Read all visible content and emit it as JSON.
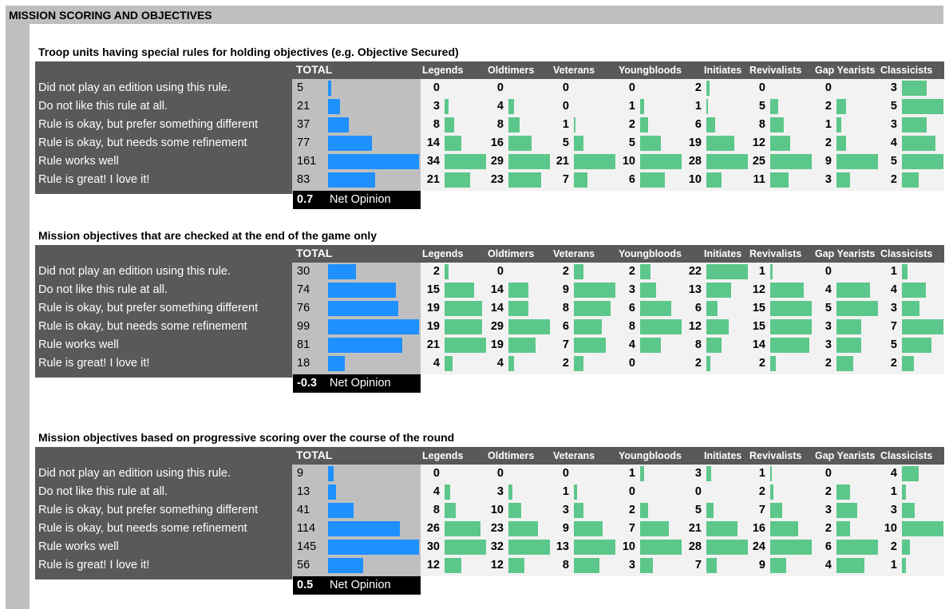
{
  "header": {
    "title": "MISSION SCORING AND OBJECTIVES"
  },
  "total_label": "TOTAL",
  "net_label": "Net Opinion",
  "groups": [
    "Legends",
    "Oldtimers",
    "Veterans",
    "Youngbloods",
    "Initiates",
    "Revivalists",
    "Gap Yearists",
    "Classicists"
  ],
  "row_labels": [
    "Did not play an edition using this rule.",
    "Do not like this rule at all.",
    "Rule is okay, but prefer something different",
    "Rule is okay, but needs some refinement",
    "Rule works well",
    "Rule is great! I love it!"
  ],
  "colors": {
    "total_bar": "#1e90ff",
    "group_bar": "#5cc78a",
    "dark": "#595959",
    "grey": "#bfbfbf",
    "light": "#f2f2f2"
  },
  "chart_data": [
    {
      "type": "table",
      "title": "Troop units having special rules for holding objectives (e.g. Objective Secured)",
      "net_opinion": "0.7",
      "totals": [
        5,
        21,
        37,
        77,
        161,
        83
      ],
      "group_values": [
        [
          0,
          3,
          8,
          14,
          34,
          21
        ],
        [
          0,
          4,
          8,
          16,
          29,
          23
        ],
        [
          0,
          0,
          1,
          5,
          21,
          7
        ],
        [
          0,
          1,
          2,
          5,
          10,
          6
        ],
        [
          2,
          1,
          6,
          19,
          28,
          10
        ],
        [
          0,
          5,
          8,
          12,
          25,
          11
        ],
        [
          0,
          2,
          1,
          2,
          9,
          3
        ],
        [
          3,
          5,
          3,
          4,
          5,
          2
        ]
      ]
    },
    {
      "type": "table",
      "title": "Mission objectives that are checked at the end of the game only",
      "net_opinion": "-0.3",
      "totals": [
        30,
        74,
        76,
        99,
        81,
        18
      ],
      "group_values": [
        [
          2,
          15,
          19,
          19,
          21,
          4
        ],
        [
          0,
          14,
          14,
          29,
          19,
          4
        ],
        [
          2,
          9,
          8,
          6,
          7,
          2
        ],
        [
          2,
          3,
          6,
          8,
          4,
          0
        ],
        [
          22,
          13,
          6,
          12,
          8,
          2
        ],
        [
          1,
          12,
          15,
          15,
          14,
          2
        ],
        [
          0,
          4,
          5,
          3,
          3,
          2
        ],
        [
          1,
          4,
          3,
          7,
          5,
          2
        ]
      ]
    },
    {
      "type": "table",
      "title": "Mission objectives based on progressive scoring over the course of the round",
      "net_opinion": "0.5",
      "totals": [
        9,
        13,
        41,
        114,
        145,
        56
      ],
      "group_values": [
        [
          0,
          4,
          8,
          26,
          30,
          12
        ],
        [
          0,
          3,
          10,
          23,
          32,
          12
        ],
        [
          0,
          1,
          3,
          9,
          13,
          8
        ],
        [
          1,
          0,
          2,
          7,
          10,
          3
        ],
        [
          3,
          0,
          5,
          21,
          28,
          7
        ],
        [
          1,
          2,
          7,
          16,
          24,
          9
        ],
        [
          0,
          2,
          3,
          2,
          6,
          4
        ],
        [
          4,
          1,
          3,
          10,
          2,
          1
        ]
      ]
    }
  ]
}
